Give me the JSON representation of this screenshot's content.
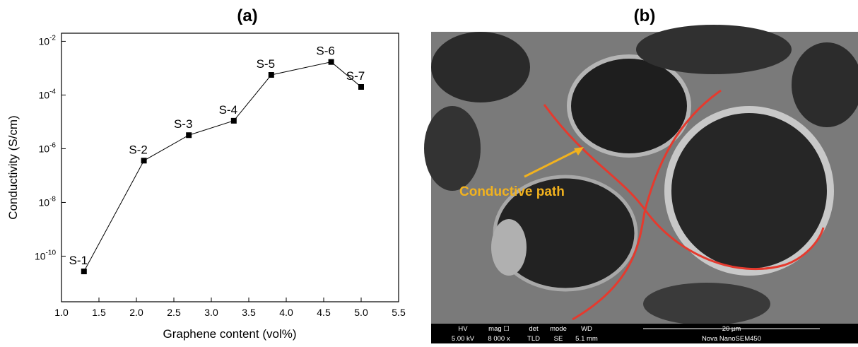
{
  "chart_data": {
    "type": "line",
    "title": "(a)",
    "xlabel": "Graphene content (vol%)",
    "ylabel": "Conductivity (S/cm)",
    "x": [
      1.3,
      2.1,
      2.7,
      3.3,
      3.8,
      4.6,
      5.0
    ],
    "series": [
      {
        "name": "Conductivity",
        "color": "#000000",
        "values": [
          2.7e-11,
          3.6e-07,
          3.2e-06,
          1.1e-05,
          0.00056,
          0.0017,
          0.0002
        ],
        "point_labels": [
          "S-1",
          "S-2",
          "S-3",
          "S-4",
          "S-5",
          "S-6",
          "S-7"
        ]
      }
    ],
    "xlim": [
      1.0,
      5.5
    ],
    "xticks": [
      {
        "value": 1,
        "label": "1.0"
      },
      1.5,
      {
        "value": 2,
        "label": "2.0"
      },
      2.5,
      {
        "value": 3,
        "label": "3.0"
      },
      3.5,
      {
        "value": 4,
        "label": "4.0"
      },
      4.5,
      {
        "value": 5,
        "label": "5.0"
      },
      5.5
    ],
    "ylim": [
      2e-12,
      0.02
    ],
    "ylog": true,
    "yticks": [
      {
        "value": 1e-10,
        "label": "10-10"
      },
      {
        "value": 1e-08,
        "label": "10-8"
      },
      {
        "value": 1e-06,
        "label": "10-6"
      },
      {
        "value": 0.0001,
        "label": "10-4"
      },
      {
        "value": 0.01,
        "label": "10-2"
      }
    ],
    "grid": false
  },
  "image": {
    "title": "(b)",
    "annotation": "Conductive path",
    "info": {
      "hv_label": "HV",
      "hv": "5.00 kV",
      "mag_label": "mag ☐",
      "mag": "8 000 x",
      "det_label": "det",
      "det": "TLD",
      "mode_label": "mode",
      "mode": "SE",
      "wd_label": "WD",
      "wd": "5.1 mm",
      "scale": "20 µm",
      "instrument": "Nova NanoSEM450"
    }
  }
}
